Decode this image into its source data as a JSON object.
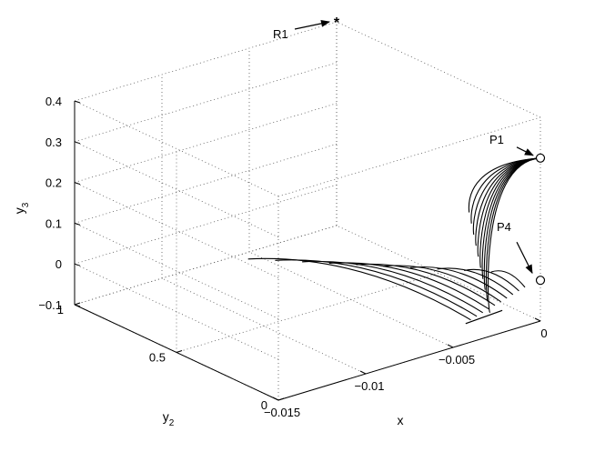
{
  "chart_data": {
    "type": "line",
    "projection": "3d",
    "xlabel": "x",
    "ylabel": "y",
    "ylabel_sub": "2",
    "zlabel": "y",
    "zlabel_sub": "3",
    "x_ticks": [
      "-0.015",
      "-0.01",
      "-0.005",
      "0"
    ],
    "y_ticks": [
      "0",
      "0.5",
      "1"
    ],
    "z_ticks": [
      "-0.1",
      "0",
      "0.1",
      "0.2",
      "0.3",
      "0.4"
    ],
    "xlim": [
      -0.015,
      0
    ],
    "ylim": [
      0,
      1
    ],
    "zlim": [
      -0.1,
      0.4
    ],
    "grid": true,
    "annotations": [
      {
        "label": "R1",
        "marker": "star"
      },
      {
        "label": "P1",
        "marker": "circle"
      },
      {
        "label": "P4",
        "marker": "circle"
      }
    ],
    "series": [
      {
        "group": "to-P1",
        "count": 10
      },
      {
        "group": "to-P4",
        "count": 10
      }
    ]
  }
}
